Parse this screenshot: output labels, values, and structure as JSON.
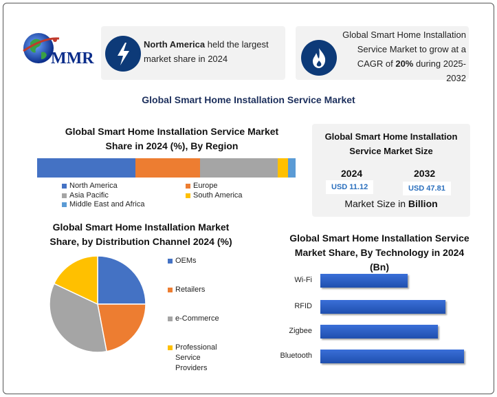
{
  "logo": {
    "text": "MMR",
    "icon": "globe-icon"
  },
  "header_cards": [
    {
      "icon": "lightning-icon",
      "bold": "North America",
      "rest": " held the largest market share in 2024"
    },
    {
      "icon": "flame-icon",
      "line1": "Global Smart Home Installation",
      "line2": "Service Market to grow at a",
      "line3_pre": "CAGR of ",
      "line3_bold": "20%",
      "line3_post": " during 2025-2032"
    }
  ],
  "main_title": "Global Smart Home Installation Service Market",
  "region_title": "Global Smart Home Installation Service Market Share in 2024 (%), By Region",
  "size_card": {
    "title": "Global Smart Home Installation Service Market Size",
    "years": [
      "2024",
      "2032"
    ],
    "values": [
      "USD 11.12",
      "USD 47.81"
    ],
    "footer_pre": "Market Size in ",
    "footer_bold": "Billion"
  },
  "channel_title": "Global Smart Home Installation Market Share, by Distribution Channel 2024 (%)",
  "tech_title": "Global Smart Home Installation Service Market Share, By Technology in 2024 (Bn)",
  "colors": {
    "blue": "#4472c4",
    "orange": "#ed7d31",
    "gray": "#a5a5a5",
    "yellow": "#ffc000",
    "lightblue": "#5b9bd5"
  },
  "chart_data": [
    {
      "type": "bar",
      "orientation": "stacked-horizontal",
      "title": "Global Smart Home Installation Service Market Share in 2024 (%), By Region",
      "series": [
        {
          "name": "North America",
          "values": [
            38
          ],
          "color": "#4472c4"
        },
        {
          "name": "Europe",
          "values": [
            25
          ],
          "color": "#ed7d31"
        },
        {
          "name": "Asia Pacific",
          "values": [
            30
          ],
          "color": "#a5a5a5"
        },
        {
          "name": "South America",
          "values": [
            4
          ],
          "color": "#ffc000"
        },
        {
          "name": "Middle East and Africa",
          "values": [
            3
          ],
          "color": "#5b9bd5"
        }
      ],
      "legend": "bottom"
    },
    {
      "type": "pie",
      "title": "Global Smart Home Installation Market Share, by Distribution Channel 2024 (%)",
      "labels": [
        "OEMs",
        "Retailers",
        "e-Commerce",
        "Professional Service Providers"
      ],
      "values": [
        25,
        22,
        35,
        18
      ],
      "colors": [
        "#4472c4",
        "#ed7d31",
        "#a5a5a5",
        "#ffc000"
      ],
      "legend": "right"
    },
    {
      "type": "bar",
      "orientation": "horizontal",
      "title": "Global Smart Home Installation Service Market Share, By Technology in 2024 (Bn)",
      "categories": [
        "Wi-Fi",
        "RFID",
        "Zigbee",
        "Bluetooth"
      ],
      "values": [
        2.3,
        3.3,
        3.1,
        3.8
      ],
      "xlim": [
        0,
        4
      ]
    }
  ]
}
